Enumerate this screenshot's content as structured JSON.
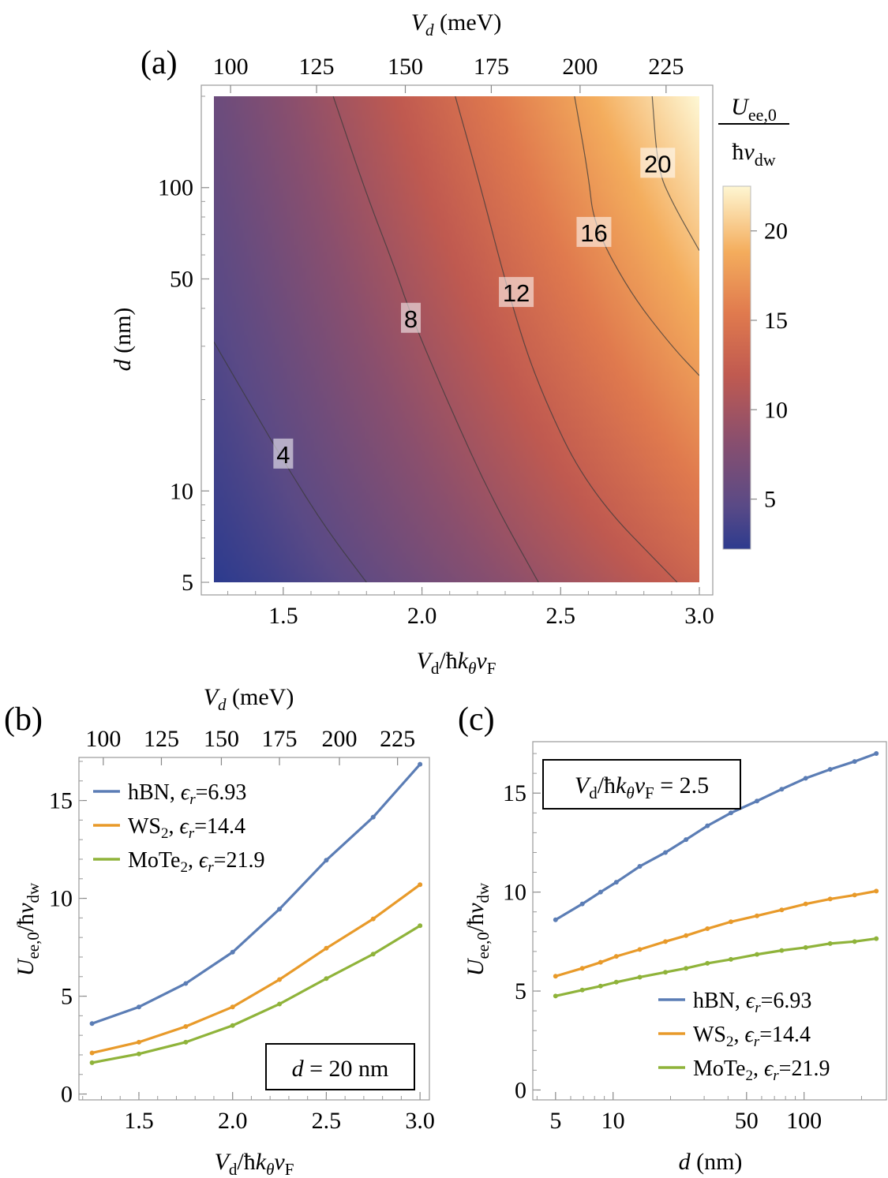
{
  "chart_data": [
    {
      "panel_label": "(a)",
      "type": "heatmap",
      "x_label_bottom": "V_d/ħk_θv_F",
      "x_label_top": "V_d (meV)",
      "y_label": "d (nm)",
      "y_scale": "log",
      "xlim": [
        1.25,
        3.0
      ],
      "ylim": [
        5,
        200
      ],
      "x_ticks": [
        "1.5",
        "2.0",
        "2.5",
        "3.0"
      ],
      "x_tick_values": [
        1.5,
        2.0,
        2.5,
        3.0
      ],
      "top_ticks": [
        "100",
        "125",
        "150",
        "175",
        "200",
        "225"
      ],
      "top_tick_values": [
        1.31,
        1.62,
        1.94,
        2.25,
        2.57,
        2.88
      ],
      "y_ticks": [
        "5",
        "10",
        "50",
        "100"
      ],
      "y_tick_values": [
        5,
        10,
        50,
        100
      ],
      "colorbar_label": "U_ee,0 / ħv_dw",
      "colorbar_ticks": [
        "5",
        "10",
        "15",
        "20"
      ],
      "colorbar_tick_values": [
        5,
        10,
        15,
        20
      ],
      "colorbar_range": [
        2.2,
        22.5
      ],
      "contour_levels": [
        4,
        8,
        12,
        16,
        20
      ],
      "contour_labels": [
        "4",
        "8",
        "12",
        "16",
        "20"
      ],
      "contours": [
        {
          "level": 4,
          "points": [
            [
              1.25,
              31
            ],
            [
              1.4,
              18
            ],
            [
              1.5,
              12.6
            ],
            [
              1.65,
              7.6
            ],
            [
              1.8,
              5
            ]
          ]
        },
        {
          "level": 8,
          "points": [
            [
              1.68,
              200
            ],
            [
              1.8,
              95
            ],
            [
              1.9,
              55
            ],
            [
              1.96,
              38
            ],
            [
              2.1,
              19
            ],
            [
              2.25,
              9.5
            ],
            [
              2.42,
              5
            ]
          ]
        },
        {
          "level": 12,
          "points": [
            [
              2.12,
              200
            ],
            [
              2.2,
              110
            ],
            [
              2.32,
              42
            ],
            [
              2.42,
              22
            ],
            [
              2.6,
              10
            ],
            [
              2.92,
              5
            ]
          ]
        },
        {
          "level": 16,
          "points": [
            [
              2.55,
              200
            ],
            [
              2.6,
              110
            ],
            [
              2.62,
              75
            ],
            [
              2.75,
              45
            ],
            [
              2.9,
              30
            ],
            [
              3.0,
              24
            ]
          ]
        },
        {
          "level": 20,
          "points": [
            [
              2.83,
              200
            ],
            [
              2.85,
              115
            ],
            [
              2.9,
              90
            ],
            [
              3.0,
              62
            ]
          ]
        }
      ],
      "corner_values": {
        "bottom_left": 2.2,
        "top_left": 6.0,
        "bottom_right": 13.0,
        "top_right": 22.5
      }
    },
    {
      "panel_label": "(b)",
      "type": "line",
      "x_label": "V_d/ħk_θv_F",
      "x_label_top": "V_d (meV)",
      "y_label": "U_ee,0/ħv_dw",
      "xlim": [
        1.18,
        3.05
      ],
      "ylim": [
        -0.3,
        17.2
      ],
      "x_ticks": [
        "1.5",
        "2.0",
        "2.5",
        "3.0"
      ],
      "x_tick_values": [
        1.5,
        2.0,
        2.5,
        3.0
      ],
      "top_ticks": [
        "100",
        "125",
        "150",
        "175",
        "200",
        "225"
      ],
      "top_tick_values": [
        1.31,
        1.62,
        1.94,
        2.25,
        2.57,
        2.88
      ],
      "y_ticks": [
        "0",
        "5",
        "10",
        "15"
      ],
      "y_tick_values": [
        0,
        5,
        10,
        15
      ],
      "annotation": "d = 20 nm",
      "legend_position": "top-left",
      "x": [
        1.25,
        1.5,
        1.75,
        2.0,
        2.25,
        2.5,
        2.75,
        3.0
      ],
      "series": [
        {
          "name": "hBN, ϵ_r=6.93",
          "color": "#5b7db5",
          "values": [
            3.6,
            4.45,
            5.65,
            7.25,
            9.45,
            11.95,
            14.15,
            16.85
          ]
        },
        {
          "name": "WS_2, ϵ_r=14.4",
          "color": "#e89a2a",
          "values": [
            2.1,
            2.65,
            3.45,
            4.45,
            5.85,
            7.45,
            8.95,
            10.7
          ]
        },
        {
          "name": "MoTe_2, ϵ_r=21.9",
          "color": "#8fb33a",
          "values": [
            1.6,
            2.05,
            2.65,
            3.5,
            4.6,
            5.9,
            7.15,
            8.6
          ]
        }
      ]
    },
    {
      "panel_label": "(c)",
      "type": "line",
      "x_label": "d (nm)",
      "y_label": "U_ee,0/ħv_dw",
      "x_scale": "log",
      "xlim": [
        3.8,
        270
      ],
      "ylim": [
        -0.5,
        17.6
      ],
      "x_ticks": [
        "5",
        "10",
        "50",
        "100"
      ],
      "x_tick_values": [
        5,
        10,
        50,
        100
      ],
      "y_ticks": [
        "0",
        "5",
        "10",
        "15"
      ],
      "y_tick_values": [
        0,
        5,
        10,
        15
      ],
      "annotation": "V_d/ħk_θv_F = 2.5",
      "legend_position": "bottom-right",
      "x": [
        5,
        6.9,
        8.6,
        10.4,
        13.8,
        18.8,
        24.1,
        31.2,
        41.4,
        56.7,
        76.4,
        102,
        137,
        184,
        239
      ],
      "series": [
        {
          "name": "hBN, ϵ_r=6.93",
          "color": "#5b7db5",
          "values": [
            8.6,
            9.4,
            10.0,
            10.5,
            11.3,
            12.0,
            12.65,
            13.35,
            14.0,
            14.6,
            15.2,
            15.75,
            16.2,
            16.6,
            17.0
          ]
        },
        {
          "name": "WS_2, ϵ_r=14.4",
          "color": "#e89a2a",
          "values": [
            5.75,
            6.15,
            6.45,
            6.75,
            7.1,
            7.5,
            7.8,
            8.15,
            8.5,
            8.8,
            9.1,
            9.4,
            9.65,
            9.85,
            10.05
          ]
        },
        {
          "name": "MoTe_2, ϵ_r=21.9",
          "color": "#8fb33a",
          "values": [
            4.75,
            5.05,
            5.25,
            5.45,
            5.7,
            5.95,
            6.15,
            6.4,
            6.6,
            6.85,
            7.05,
            7.2,
            7.4,
            7.5,
            7.65
          ]
        }
      ]
    }
  ]
}
